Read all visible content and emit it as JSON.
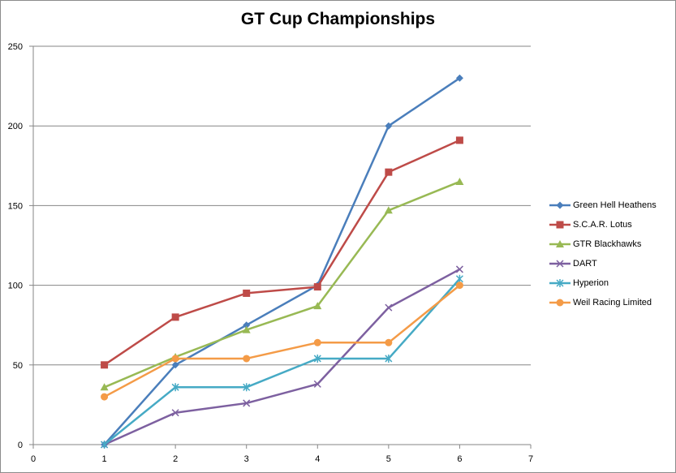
{
  "chart_data": {
    "type": "line",
    "title": "GT Cup Championships",
    "xlabel": "",
    "ylabel": "",
    "xlim": [
      0,
      7
    ],
    "ylim": [
      0,
      250
    ],
    "xticks": [
      0,
      1,
      2,
      3,
      4,
      5,
      6,
      7
    ],
    "yticks": [
      0,
      50,
      100,
      150,
      200,
      250
    ],
    "grid": "horizontal major gridlines",
    "legend_position": "right",
    "x": [
      1,
      2,
      3,
      4,
      5,
      6
    ],
    "series": [
      {
        "name": "Green Hell Heathens",
        "values": [
          0,
          50,
          75,
          100,
          200,
          230
        ],
        "color": "#4a7ebb",
        "marker": "diamond"
      },
      {
        "name": "S.C.A.R. Lotus",
        "values": [
          50,
          80,
          95,
          99,
          171,
          191
        ],
        "color": "#be4b48",
        "marker": "square"
      },
      {
        "name": "GTR Blackhawks",
        "values": [
          36,
          55,
          72,
          87,
          147,
          165
        ],
        "color": "#98b954",
        "marker": "triangle"
      },
      {
        "name": "DART",
        "values": [
          0,
          20,
          26,
          38,
          86,
          110
        ],
        "color": "#7d60a0",
        "marker": "x"
      },
      {
        "name": "Hyperion",
        "values": [
          0,
          36,
          36,
          54,
          54,
          104
        ],
        "color": "#46aac5",
        "marker": "star"
      },
      {
        "name": "Weil Racing Limited",
        "values": [
          30,
          54,
          54,
          64,
          64,
          100
        ],
        "color": "#f49b47",
        "marker": "circle"
      }
    ]
  }
}
